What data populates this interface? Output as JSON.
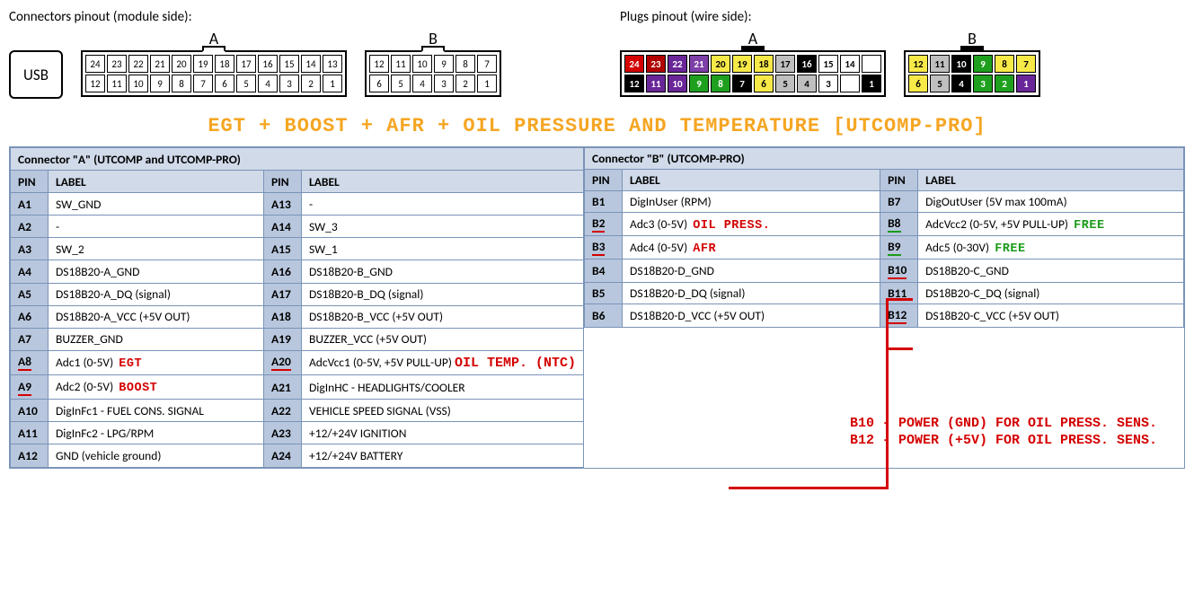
{
  "top": {
    "left_label": "Connectors pinout (module side):",
    "right_label": "Plugs pinout (wire side):",
    "usb": "USB",
    "letters": {
      "A": "A",
      "B": "B"
    }
  },
  "module_side": {
    "A": {
      "top_row": [
        "24",
        "23",
        "22",
        "21",
        "20",
        "19",
        "18",
        "17",
        "16",
        "15",
        "14",
        "13"
      ],
      "bot_row": [
        "12",
        "11",
        "10",
        "9",
        "8",
        "7",
        "6",
        "5",
        "4",
        "3",
        "2",
        "1"
      ]
    },
    "B": {
      "top_row": [
        "12",
        "11",
        "10",
        "9",
        "8",
        "7"
      ],
      "bot_row": [
        "6",
        "5",
        "4",
        "3",
        "2",
        "1"
      ]
    }
  },
  "wire_side": {
    "A": {
      "top_row": [
        {
          "n": "24",
          "bg": "#d40000"
        },
        {
          "n": "23",
          "bg": "#b00000"
        },
        {
          "n": "22",
          "bg": "#6a2699"
        },
        {
          "n": "21",
          "bg": "#7e3fa8"
        },
        {
          "n": "20",
          "bg": "#f7e948",
          "fg": "#000"
        },
        {
          "n": "19",
          "bg": "#f7e948",
          "fg": "#000"
        },
        {
          "n": "18",
          "bg": "#f7e948",
          "fg": "#000"
        },
        {
          "n": "17",
          "bg": "#bfbfbf",
          "fg": "#000"
        },
        {
          "n": "16",
          "bg": "#000000"
        },
        {
          "n": "15",
          "bg": "#ffffff",
          "fg": "#000"
        },
        {
          "n": "14",
          "bg": "#ffffff",
          "fg": "#000"
        },
        {
          "n": "",
          "bg": "#ffffff"
        }
      ],
      "bot_row": [
        {
          "n": "12",
          "bg": "#000000"
        },
        {
          "n": "11",
          "bg": "#6a2699"
        },
        {
          "n": "10",
          "bg": "#6a2699"
        },
        {
          "n": "9",
          "bg": "#1ea01e"
        },
        {
          "n": "8",
          "bg": "#1ea01e"
        },
        {
          "n": "7",
          "bg": "#000000"
        },
        {
          "n": "6",
          "bg": "#f7e948",
          "fg": "#000"
        },
        {
          "n": "5",
          "bg": "#bfbfbf",
          "fg": "#000"
        },
        {
          "n": "4",
          "bg": "#bfbfbf",
          "fg": "#000"
        },
        {
          "n": "3",
          "bg": "#ffffff",
          "fg": "#000"
        },
        {
          "n": "",
          "bg": "#ffffff"
        },
        {
          "n": "1",
          "bg": "#000000"
        }
      ]
    },
    "B": {
      "top_row": [
        {
          "n": "12",
          "bg": "#f7e948",
          "fg": "#000"
        },
        {
          "n": "11",
          "bg": "#bfbfbf",
          "fg": "#000"
        },
        {
          "n": "10",
          "bg": "#000000"
        },
        {
          "n": "9",
          "bg": "#1ea01e"
        },
        {
          "n": "8",
          "bg": "#f7e948",
          "fg": "#000"
        },
        {
          "n": "7",
          "bg": "#f7e948",
          "fg": "#000"
        }
      ],
      "bot_row": [
        {
          "n": "6",
          "bg": "#f7e948",
          "fg": "#000"
        },
        {
          "n": "5",
          "bg": "#bfbfbf",
          "fg": "#000"
        },
        {
          "n": "4",
          "bg": "#000000"
        },
        {
          "n": "3",
          "bg": "#1ea01e"
        },
        {
          "n": "2",
          "bg": "#1ea01e"
        },
        {
          "n": "1",
          "bg": "#6a2699"
        }
      ]
    }
  },
  "title": "EGT + BOOST + AFR + OIL PRESSURE AND TEMPERATURE [UTCOMP-PRO]",
  "tableA": {
    "header": "Connector \"A\" (UTCOMP and UTCOMP-PRO)",
    "col_pin": "PIN",
    "col_label": "LABEL",
    "rows_left": [
      {
        "pin": "A1",
        "label": "SW_GND"
      },
      {
        "pin": "A2",
        "label": "-"
      },
      {
        "pin": "A3",
        "label": "SW_2"
      },
      {
        "pin": "A4",
        "label": "DS18B20-A_GND"
      },
      {
        "pin": "A5",
        "label": "DS18B20-A_DQ (signal)"
      },
      {
        "pin": "A6",
        "label": "DS18B20-A_VCC (+5V OUT)"
      },
      {
        "pin": "A7",
        "label": "BUZZER_GND"
      },
      {
        "pin": "A8",
        "label": "Adc1 (0-5V)",
        "ann": "EGT",
        "ann_color": "red",
        "pin_ul": "red"
      },
      {
        "pin": "A9",
        "label": "Adc2 (0-5V)",
        "ann": "BOOST",
        "ann_color": "red",
        "pin_ul": "red"
      },
      {
        "pin": "A10",
        "label": "DigInFc1 - FUEL CONS. SIGNAL"
      },
      {
        "pin": "A11",
        "label": "DigInFc2 - LPG/RPM"
      },
      {
        "pin": "A12",
        "label": "GND (vehicle ground)"
      }
    ],
    "rows_right": [
      {
        "pin": "A13",
        "label": "-"
      },
      {
        "pin": "A14",
        "label": "SW_3"
      },
      {
        "pin": "A15",
        "label": "SW_1"
      },
      {
        "pin": "A16",
        "label": "DS18B20-B_GND"
      },
      {
        "pin": "A17",
        "label": "DS18B20-B_DQ (signal)"
      },
      {
        "pin": "A18",
        "label": "DS18B20-B_VCC (+5V OUT)"
      },
      {
        "pin": "A19",
        "label": "BUZZER_VCC (+5V OUT)"
      },
      {
        "pin": "A20",
        "label": "AdcVcc1 (0-5V, +5V PULL-UP)",
        "ann_after": "OIL TEMP. (NTC)",
        "pin_ul": "red"
      },
      {
        "pin": "A21",
        "label": "DigInHC - HEADLIGHTS/COOLER"
      },
      {
        "pin": "A22",
        "label": "VEHICLE SPEED SIGNAL (VSS)"
      },
      {
        "pin": "A23",
        "label": "+12/+24V IGNITION"
      },
      {
        "pin": "A24",
        "label": "+12/+24V BATTERY"
      }
    ]
  },
  "tableB": {
    "header": "Connector \"B\" (UTCOMP-PRO)",
    "col_pin": "PIN",
    "col_label": "LABEL",
    "rows_left": [
      {
        "pin": "B1",
        "label": "DigInUser (RPM)"
      },
      {
        "pin": "B2",
        "label": "Adc3 (0-5V)",
        "ann": "OIL PRESS.",
        "ann_color": "red",
        "pin_ul": "red"
      },
      {
        "pin": "B3",
        "label": "Adc4 (0-5V)",
        "ann": "AFR",
        "ann_color": "red",
        "pin_ul": "red"
      },
      {
        "pin": "B4",
        "label": "DS18B20-D_GND"
      },
      {
        "pin": "B5",
        "label": "DS18B20-D_DQ (signal)"
      },
      {
        "pin": "B6",
        "label": "DS18B20-D_VCC (+5V OUT)"
      }
    ],
    "rows_right": [
      {
        "pin": "B7",
        "label": "DigOutUser (5V max 100mA)"
      },
      {
        "pin": "B8",
        "label": "AdcVcc2 (0-5V, +5V PULL-UP)",
        "ann": "FREE",
        "ann_color": "green",
        "pin_ul": "green"
      },
      {
        "pin": "B9",
        "label": "Adc5 (0-30V)",
        "ann": "FREE",
        "ann_color": "green",
        "pin_ul": "green"
      },
      {
        "pin": "B10",
        "label": "DS18B20-C_GND",
        "pin_ul": "red"
      },
      {
        "pin": "B11",
        "label": "DS18B20-C_DQ (signal)"
      },
      {
        "pin": "B12",
        "label": "DS18B20-C_VCC (+5V OUT)",
        "pin_ul": "red"
      }
    ]
  },
  "notes": {
    "line1": "B10 - POWER (GND) FOR OIL PRESS. SENS.",
    "line2": "B12 - POWER (+5V) FOR OIL PRESS. SENS."
  }
}
